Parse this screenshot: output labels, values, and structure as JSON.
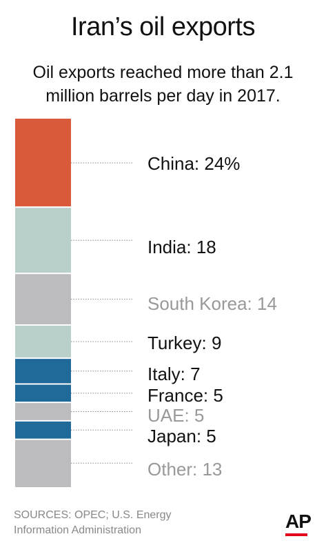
{
  "header": {
    "title": "Iran’s oil exports",
    "subtitle_line1": "Oil exports reached more than 2.1",
    "subtitle_line2": "million barrels per day in 2017."
  },
  "chart_data": {
    "type": "bar",
    "stacked": true,
    "unit": "%",
    "categories": [
      "China",
      "India",
      "South Korea",
      "Turkey",
      "Italy",
      "France",
      "UAE",
      "Japan",
      "Other"
    ],
    "values": [
      24,
      18,
      14,
      9,
      7,
      5,
      5,
      5,
      13
    ],
    "labels": [
      "China: 24%",
      "India: 18",
      "South Korea: 14",
      "Turkey: 9",
      "Italy: 7",
      "France: 5",
      "UAE: 5",
      "Japan: 5",
      "Other: 13"
    ],
    "colors": [
      "#d95a3a",
      "#b9d0ca",
      "#bcbcc0",
      "#b9d0ca",
      "#1f6a99",
      "#1f6a99",
      "#bcbcc0",
      "#1f6a99",
      "#bcbcc0"
    ],
    "label_colors": [
      "#111111",
      "#111111",
      "#999999",
      "#111111",
      "#111111",
      "#111111",
      "#999999",
      "#111111",
      "#999999"
    ]
  },
  "footer": {
    "source_line1": "SOURCES: OPEC; U.S. Energy",
    "source_line2": "Information Administration",
    "logo": "AP"
  },
  "colors": {
    "logo_accent": "#e2001a",
    "leader_line": "#888888"
  }
}
